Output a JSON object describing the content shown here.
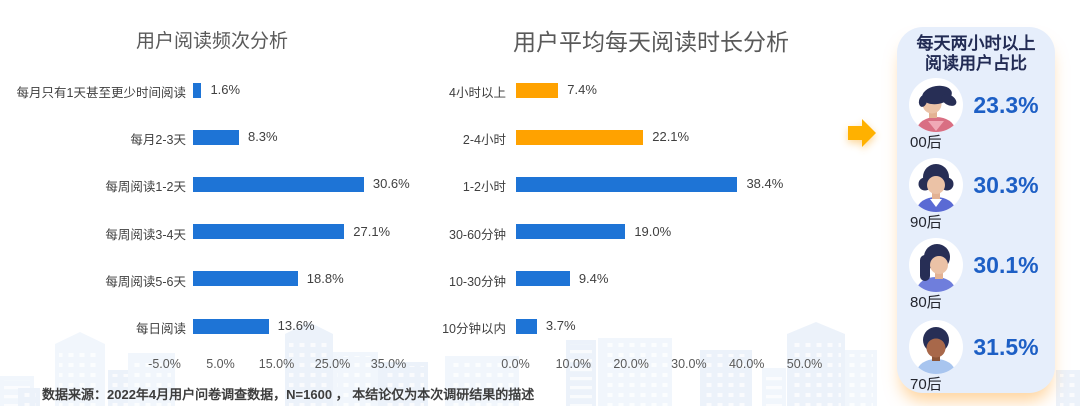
{
  "chart_data": [
    {
      "type": "bar",
      "orientation": "horizontal",
      "title": "用户阅读频次分析",
      "categories": [
        "每月只有1天甚至更少时间阅读",
        "每月2-3天",
        "每周阅读1-2天",
        "每周阅读3-4天",
        "每周阅读5-6天",
        "每日阅读"
      ],
      "values": [
        1.6,
        8.3,
        30.6,
        27.1,
        18.8,
        13.6
      ],
      "value_labels": [
        "1.6%",
        "8.3%",
        "30.6%",
        "27.1%",
        "18.8%",
        "13.6%"
      ],
      "bar_colors": [
        "blue",
        "blue",
        "blue",
        "blue",
        "blue",
        "blue"
      ],
      "x_ticks": [
        -5,
        5,
        15,
        25,
        35
      ],
      "x_tick_labels": [
        "-5.0%",
        "5.0%",
        "15.0%",
        "25.0%",
        "35.0%"
      ],
      "xlim": [
        -10,
        40
      ],
      "grid": false,
      "legend": false
    },
    {
      "type": "bar",
      "orientation": "horizontal",
      "title": "用户平均每天阅读时长分析",
      "categories": [
        "4小时以上",
        "2-4小时",
        "1-2小时",
        "30-60分钟",
        "10-30分钟",
        "10分钟以内"
      ],
      "values": [
        7.4,
        22.1,
        38.4,
        19.0,
        9.4,
        3.7
      ],
      "value_labels": [
        "7.4%",
        "22.1%",
        "38.4%",
        "19.0%",
        "9.4%",
        "3.7%"
      ],
      "bar_colors": [
        "orange",
        "orange",
        "blue",
        "blue",
        "blue",
        "blue"
      ],
      "x_ticks": [
        0,
        10,
        20,
        30,
        40,
        50
      ],
      "x_tick_labels": [
        "0.0%",
        "10.0%",
        "20.0%",
        "30.0%",
        "40.0%",
        "50.0%"
      ],
      "xlim": [
        0,
        55
      ],
      "grid": false,
      "legend": false
    },
    {
      "type": "table",
      "title_line1": "每天两小时以上",
      "title_line2": "阅读用户占比",
      "rows": [
        {
          "label": "00后",
          "value": "23.3%",
          "avatar": "gen-00s"
        },
        {
          "label": "90后",
          "value": "30.3%",
          "avatar": "gen-90s"
        },
        {
          "label": "80后",
          "value": "30.1%",
          "avatar": "gen-80s"
        },
        {
          "label": "70后",
          "value": "31.5%",
          "avatar": "gen-70s"
        }
      ]
    }
  ],
  "source_note": "数据来源：2022年4月用户问卷调查数据，N=1600 ， 本结论仅为本次调研结果的描述",
  "colors": {
    "bar_blue": "#1E74D6",
    "bar_orange": "#FFA200",
    "panel_bg": "#E6EEFB",
    "panel_title": "#222B54",
    "percent_blue": "#1D5FC5",
    "arrow": "#FFB100",
    "title_gray": "#595959",
    "label_gray": "#404040"
  }
}
